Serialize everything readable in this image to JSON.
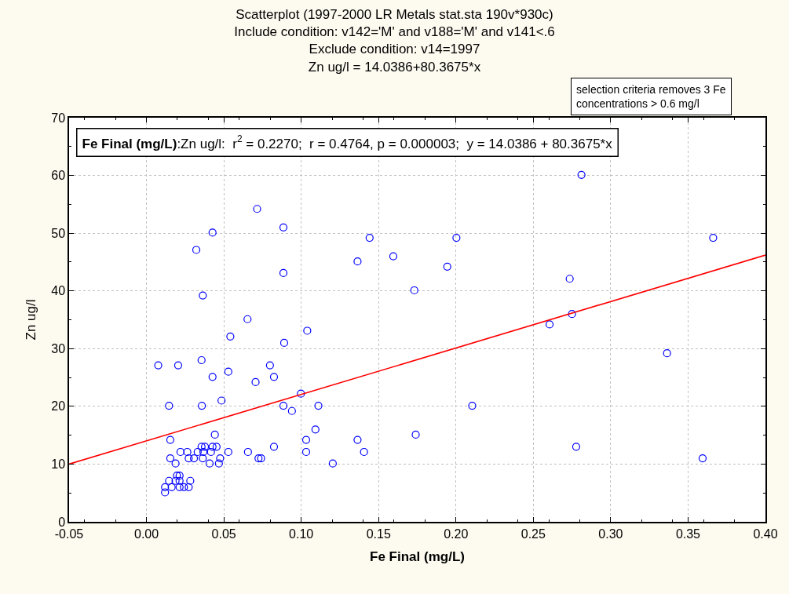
{
  "chart_data": {
    "type": "scatter",
    "title": "Scatterplot (1997-2000 LR Metals stat.sta 190v*930c)",
    "subtitle": "Include condition: v142='M' and v188='M' and v141<.6\nExclude condition: v14=1997\nZn ug/l = 14.0386+80.3675*x",
    "xlabel": "Fe Final (mg/L)",
    "ylabel": "Zn ug/l",
    "annotations": [
      "selection criteria removes 3 Fe\nconcentrations > 0.6 mg/l",
      "Fe Final (mg/L):Zn ug/l:  r$^{2}$ = 0.2270;  r = 0.4764, p = 0.000003;  y = 14.0386 + 80.3675*x"
    ],
    "xlim": [
      -0.05,
      0.4
    ],
    "xticks": [
      {
        "value": -0.05,
        "label": "-0.05"
      },
      {
        "value": 0,
        "label": "0.00"
      },
      {
        "value": 0.05,
        "label": "0.05"
      },
      {
        "value": 0.1,
        "label": "0.10"
      },
      {
        "value": 0.15,
        "label": "0.15"
      },
      {
        "value": 0.2,
        "label": "0.20"
      },
      {
        "value": 0.25,
        "label": "0.25"
      },
      {
        "value": 0.3,
        "label": "0.30"
      },
      {
        "value": 0.35,
        "label": "0.35"
      },
      {
        "value": 0.4,
        "label": "0.40"
      }
    ],
    "ylim": [
      0,
      70
    ],
    "yticks": [
      0,
      10,
      20,
      30,
      40,
      50,
      60,
      70
    ],
    "grid": true,
    "marker": "circle",
    "series": [
      {
        "color": "#0000ff",
        "x": [
          0.0715,
          0.0885,
          0.0427,
          0.0322,
          0.0885,
          0.0364,
          0.0653,
          0.0542,
          0.089,
          0.0076,
          0.0205,
          0.0356,
          0.0427,
          0.0529,
          0.0705,
          0.0798,
          0.0824,
          0.0146,
          0.0358,
          0.0485,
          0.0885,
          0.094,
          0.0154,
          0.0442,
          0.0824,
          0.0356,
          0.0378,
          0.0427,
          0.0453,
          0.022,
          0.0264,
          0.0331,
          0.0368,
          0.0417,
          0.0529,
          0.0656,
          0.0154,
          0.0273,
          0.0307,
          0.0364,
          0.0476,
          0.0724,
          0.0741,
          0.0188,
          0.0408,
          0.0468,
          0.0197,
          0.0214,
          0.0146,
          0.0188,
          0.0214,
          0.0283,
          0.012,
          0.0163,
          0.0214,
          0.0242,
          0.0273,
          0.012,
          0.1442,
          0.2003,
          0.1364,
          0.1595,
          0.1944,
          0.1731,
          0.1039,
          0.0998,
          0.1111,
          0.2105,
          0.1092,
          0.1032,
          0.1364,
          0.174,
          0.1032,
          0.1406,
          0.1204,
          0.2811,
          0.3662,
          0.2735,
          0.275,
          0.2605,
          0.3364,
          0.2777,
          0.3594
        ],
        "values": [
          54.2,
          51.0,
          50.1,
          47.1,
          43.1,
          39.2,
          35.1,
          32.1,
          31.0,
          27.1,
          27.1,
          28.0,
          25.1,
          26.0,
          24.2,
          27.1,
          25.1,
          20.1,
          20.1,
          21.0,
          20.1,
          19.2,
          14.2,
          15.1,
          13.0,
          13.0,
          13.0,
          13.0,
          13.0,
          12.1,
          12.1,
          12.1,
          12.1,
          12.1,
          12.1,
          12.1,
          11.0,
          11.0,
          11.0,
          11.0,
          11.0,
          11.0,
          11.0,
          10.1,
          10.1,
          10.1,
          8.0,
          8.0,
          7.1,
          7.1,
          7.1,
          7.1,
          6.0,
          6.0,
          6.0,
          6.0,
          6.0,
          5.1,
          49.2,
          49.2,
          45.1,
          46.0,
          44.2,
          40.1,
          33.1,
          22.2,
          20.1,
          20.1,
          16.0,
          14.2,
          14.2,
          15.1,
          12.1,
          12.1,
          10.1,
          60.1,
          49.2,
          42.1,
          36.0,
          34.2,
          29.2,
          13.0,
          11.0
        ]
      },
      {
        "type": "line",
        "color": "#ff0000",
        "marker": "none",
        "x": [
          -0.05,
          0.4
        ],
        "values": [
          10.0,
          46.2
        ]
      }
    ]
  }
}
